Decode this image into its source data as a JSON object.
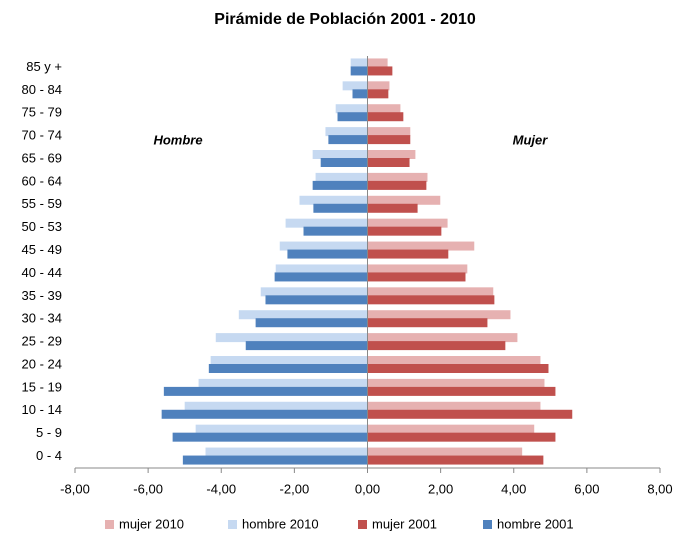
{
  "chart_data": {
    "type": "bar",
    "orientation": "horizontal",
    "title": "Pirámide de Población 2001 - 2010",
    "annotations": [
      "Hombre",
      "Mujer"
    ],
    "categories": [
      "0 - 4",
      "5 - 9",
      "10 - 14",
      "15 - 19",
      "20 - 24",
      "25 - 29",
      "30 - 34",
      "35 - 39",
      "40 - 44",
      "45 - 49",
      "50 - 53",
      "55 - 59",
      "60 - 64",
      "65 - 69",
      "70 - 74",
      "75 - 79",
      "80 - 84",
      "85 y  +"
    ],
    "series": [
      {
        "name": "mujer 2010",
        "color": "#e6b1b1",
        "values": [
          4.23,
          4.56,
          4.73,
          4.84,
          4.73,
          4.1,
          3.91,
          3.44,
          2.73,
          2.92,
          2.19,
          1.99,
          1.64,
          1.31,
          1.17,
          0.9,
          0.6,
          0.55
        ]
      },
      {
        "name": "hombre 2010",
        "color": "#c6d9f1",
        "values": [
          -4.43,
          -4.7,
          -5.0,
          -4.62,
          -4.29,
          -4.15,
          -3.52,
          -2.92,
          -2.51,
          -2.4,
          -2.24,
          -1.86,
          -1.42,
          -1.5,
          -1.15,
          -0.87,
          -0.68,
          -0.46
        ]
      },
      {
        "name": "mujer 2001",
        "color": "#c0504d",
        "values": [
          4.81,
          5.14,
          5.6,
          5.14,
          4.95,
          3.77,
          3.28,
          3.47,
          2.68,
          2.21,
          2.02,
          1.37,
          1.61,
          1.15,
          1.17,
          0.98,
          0.57,
          0.68
        ]
      },
      {
        "name": "hombre 2001",
        "color": "#4f81bd",
        "values": [
          -5.05,
          -5.33,
          -5.63,
          -5.57,
          -4.34,
          -3.33,
          -3.06,
          -2.79,
          -2.54,
          -2.19,
          -1.75,
          -1.48,
          -1.5,
          -1.28,
          -1.07,
          -0.82,
          -0.41,
          -0.46
        ]
      }
    ],
    "xlim": [
      -8,
      8
    ],
    "xticks": [
      {
        "value": -8,
        "label": "-8,00"
      },
      {
        "value": -6,
        "label": "-6,00"
      },
      {
        "value": -4,
        "label": "-4,00"
      },
      {
        "value": -2,
        "label": "-2,00"
      },
      {
        "value": 0,
        "label": "0,00"
      },
      {
        "value": 2,
        "label": "2,00"
      },
      {
        "value": 4,
        "label": "4,00"
      },
      {
        "value": 6,
        "label": "6,00"
      },
      {
        "value": 8,
        "label": "8,00"
      }
    ],
    "grid": false,
    "legend": "bottom"
  }
}
